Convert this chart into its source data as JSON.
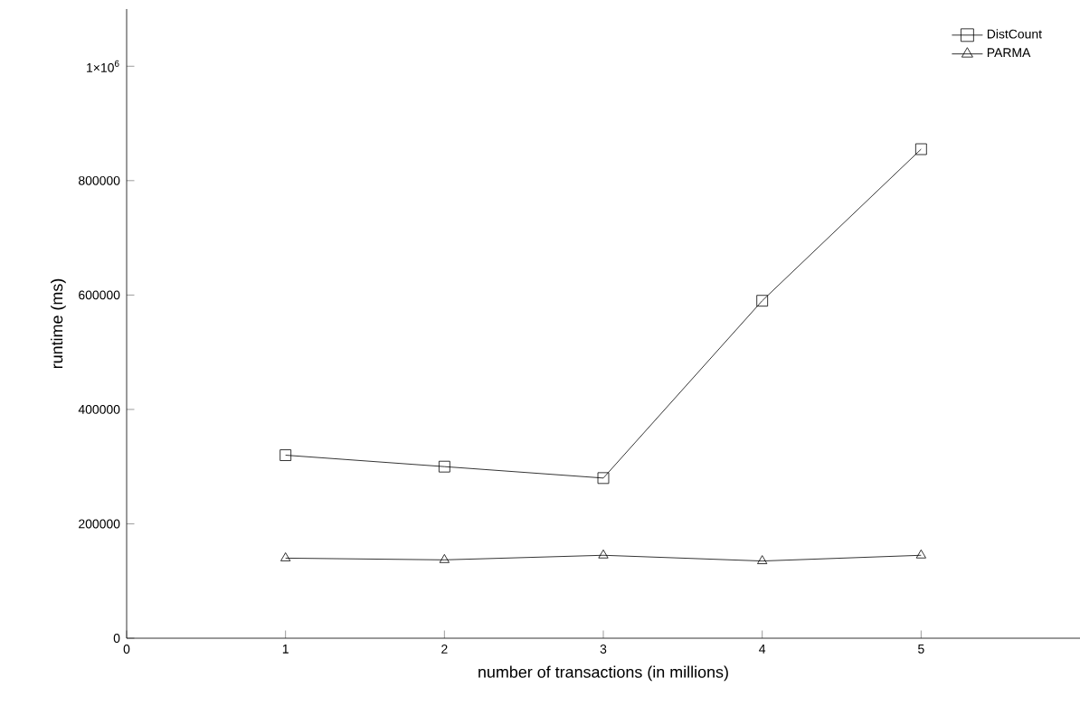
{
  "chart_data": {
    "type": "line",
    "xlabel": "number of transactions (in millions)",
    "ylabel": "runtime (ms)",
    "x": [
      1,
      2,
      3,
      4,
      5
    ],
    "series": [
      {
        "name": "DistCount",
        "color": "#000000",
        "marker": "square",
        "values": [
          320000,
          300000,
          280000,
          590000,
          855000
        ]
      },
      {
        "name": "PARMA",
        "color": "#000000",
        "marker": "triangle",
        "values": [
          140000,
          137000,
          145000,
          135000,
          145000
        ]
      }
    ],
    "xlim": [
      0,
      6
    ],
    "ylim": [
      0,
      1100000
    ],
    "xticks": [
      0,
      1,
      2,
      3,
      4,
      5
    ],
    "yticks": [
      0,
      200000,
      400000,
      600000,
      800000,
      {
        "value": 1000000,
        "label": "1×10$^{6}$"
      }
    ],
    "legend": "top right",
    "line_style": "solid"
  }
}
